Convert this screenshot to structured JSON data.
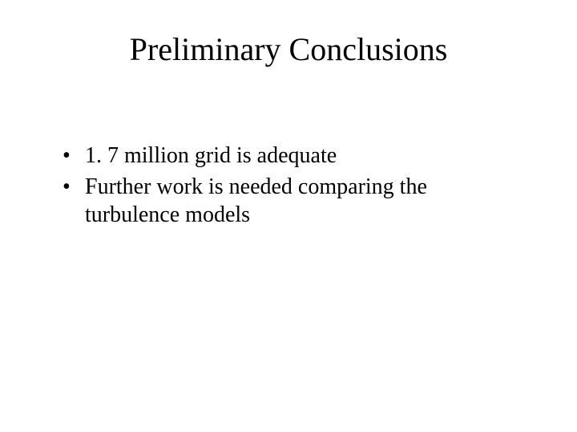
{
  "title": "Preliminary Conclusions",
  "title_fontsize": 40,
  "title_color": "#000000",
  "body_fontsize": 28,
  "body_color": "#000000",
  "background_color": "#ffffff",
  "font_family": "Times New Roman",
  "bullets": [
    "1. 7 million grid is adequate",
    "Further work is needed comparing the turbulence models"
  ]
}
